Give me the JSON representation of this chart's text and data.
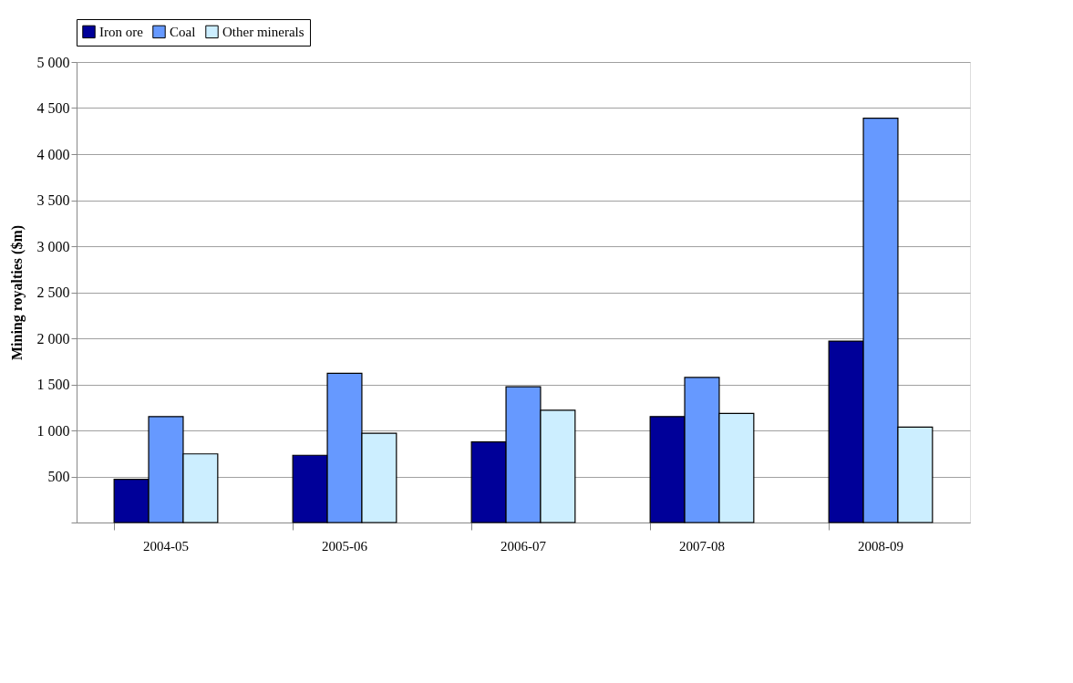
{
  "chart_data": {
    "type": "bar",
    "ylabel": "Mining royalties ($m)",
    "categories": [
      "2004-05",
      "2005-06",
      "2006-07",
      "2007-08",
      "2008-09"
    ],
    "series": [
      {
        "name": "Iron ore",
        "color": "#000099",
        "values": [
          470,
          730,
          875,
          1150,
          1970
        ]
      },
      {
        "name": "Coal",
        "color": "#6699ff",
        "values": [
          1150,
          1620,
          1475,
          1575,
          4390
        ]
      },
      {
        "name": "Other minerals",
        "color": "#cceeff",
        "values": [
          745,
          970,
          1220,
          1185,
          1035
        ]
      }
    ],
    "ylim": [
      0,
      5000
    ],
    "yticks": [
      {
        "value": 0,
        "label": null
      },
      500,
      {
        "value": 1000,
        "label": "1 000"
      },
      {
        "value": 1500,
        "label": "1 500"
      },
      {
        "value": 2000,
        "label": "2 000"
      },
      {
        "value": 2500,
        "label": "2 500"
      },
      {
        "value": 3000,
        "label": "3 000"
      },
      {
        "value": 3500,
        "label": "3 500"
      },
      {
        "value": 4000,
        "label": "4 000"
      },
      {
        "value": 4500,
        "label": "4 500"
      },
      {
        "value": 5000,
        "label": "5 000"
      }
    ],
    "grid": "y",
    "legend": "top"
  }
}
